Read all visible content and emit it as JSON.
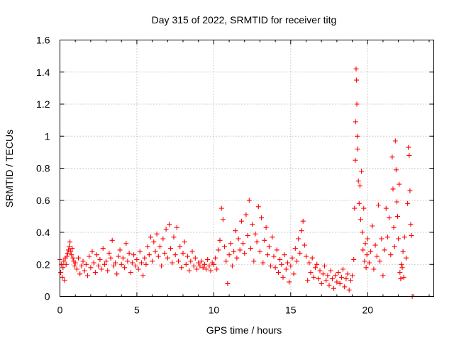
{
  "chart_data": {
    "type": "scatter",
    "title": "Day 315 of 2022, SRMTID for receiver titg",
    "xlabel": "GPS time / hours",
    "ylabel": "SRMTID / TECUs",
    "xlim": [
      0,
      24.3
    ],
    "ylim": [
      0,
      1.6
    ],
    "xticks": [
      0,
      5,
      10,
      15,
      20
    ],
    "yticks": [
      0,
      0.2,
      0.4,
      0.6,
      0.8,
      1,
      1.2,
      1.4,
      1.6
    ],
    "ytick_labels": [
      "0",
      "0.2",
      "0.4",
      "0.6",
      "0.8",
      "1",
      "1.2",
      "1.4",
      "1.6"
    ],
    "grid": true,
    "marker": "plus",
    "marker_color": "#ff0000",
    "series": [
      {
        "name": "SRMTID",
        "points": [
          [
            0.0,
            0.23
          ],
          [
            0.05,
            0.15
          ],
          [
            0.1,
            0.2
          ],
          [
            0.15,
            0.12
          ],
          [
            0.2,
            0.18
          ],
          [
            0.25,
            0.22
          ],
          [
            0.3,
            0.1
          ],
          [
            0.35,
            0.24
          ],
          [
            0.4,
            0.2
          ],
          [
            0.45,
            0.25
          ],
          [
            0.5,
            0.27
          ],
          [
            0.55,
            0.29
          ],
          [
            0.6,
            0.31
          ],
          [
            0.65,
            0.34
          ],
          [
            0.7,
            0.28
          ],
          [
            0.75,
            0.26
          ],
          [
            0.8,
            0.3
          ],
          [
            0.85,
            0.24
          ],
          [
            0.9,
            0.22
          ],
          [
            0.95,
            0.19
          ],
          [
            1.0,
            0.21
          ],
          [
            1.1,
            0.17
          ],
          [
            1.2,
            0.24
          ],
          [
            1.3,
            0.14
          ],
          [
            1.4,
            0.19
          ],
          [
            1.5,
            0.22
          ],
          [
            1.6,
            0.16
          ],
          [
            1.7,
            0.2
          ],
          [
            1.8,
            0.13
          ],
          [
            1.9,
            0.25
          ],
          [
            2.0,
            0.18
          ],
          [
            2.1,
            0.28
          ],
          [
            2.2,
            0.21
          ],
          [
            2.3,
            0.15
          ],
          [
            2.4,
            0.26
          ],
          [
            2.5,
            0.19
          ],
          [
            2.6,
            0.23
          ],
          [
            2.7,
            0.17
          ],
          [
            2.8,
            0.3
          ],
          [
            2.9,
            0.2
          ],
          [
            3.0,
            0.22
          ],
          [
            3.1,
            0.16
          ],
          [
            3.2,
            0.27
          ],
          [
            3.3,
            0.24
          ],
          [
            3.4,
            0.35
          ],
          [
            3.5,
            0.19
          ],
          [
            3.6,
            0.21
          ],
          [
            3.7,
            0.14
          ],
          [
            3.8,
            0.25
          ],
          [
            3.9,
            0.29
          ],
          [
            4.0,
            0.2
          ],
          [
            4.1,
            0.24
          ],
          [
            4.2,
            0.18
          ],
          [
            4.3,
            0.33
          ],
          [
            4.4,
            0.22
          ],
          [
            4.5,
            0.27
          ],
          [
            4.6,
            0.15
          ],
          [
            4.7,
            0.21
          ],
          [
            4.8,
            0.26
          ],
          [
            4.9,
            0.19
          ],
          [
            5.0,
            0.23
          ],
          [
            5.1,
            0.17
          ],
          [
            5.2,
            0.28
          ],
          [
            5.3,
            0.21
          ],
          [
            5.4,
            0.13
          ],
          [
            5.5,
            0.24
          ],
          [
            5.6,
            0.2
          ],
          [
            5.7,
            0.31
          ],
          [
            5.8,
            0.26
          ],
          [
            5.9,
            0.37
          ],
          [
            6.0,
            0.22
          ],
          [
            6.1,
            0.34
          ],
          [
            6.2,
            0.28
          ],
          [
            6.3,
            0.39
          ],
          [
            6.4,
            0.25
          ],
          [
            6.5,
            0.31
          ],
          [
            6.6,
            0.19
          ],
          [
            6.7,
            0.36
          ],
          [
            6.8,
            0.27
          ],
          [
            6.9,
            0.42
          ],
          [
            7.0,
            0.24
          ],
          [
            7.1,
            0.45
          ],
          [
            7.2,
            0.3
          ],
          [
            7.3,
            0.21
          ],
          [
            7.4,
            0.37
          ],
          [
            7.5,
            0.26
          ],
          [
            7.6,
            0.43
          ],
          [
            7.7,
            0.22
          ],
          [
            7.8,
            0.31
          ],
          [
            7.9,
            0.18
          ],
          [
            8.0,
            0.27
          ],
          [
            8.1,
            0.34
          ],
          [
            8.2,
            0.2
          ],
          [
            8.3,
            0.25
          ],
          [
            8.4,
            0.16
          ],
          [
            8.5,
            0.22
          ],
          [
            8.6,
            0.28
          ],
          [
            8.7,
            0.19
          ],
          [
            8.8,
            0.24
          ],
          [
            8.9,
            0.17
          ],
          [
            9.0,
            0.21
          ],
          [
            9.1,
            0.19
          ],
          [
            9.2,
            0.22
          ],
          [
            9.3,
            0.18
          ],
          [
            9.4,
            0.2
          ],
          [
            9.5,
            0.17
          ],
          [
            9.6,
            0.23
          ],
          [
            9.7,
            0.19
          ],
          [
            9.8,
            0.16
          ],
          [
            9.9,
            0.21
          ],
          [
            10.0,
            0.2
          ],
          [
            10.1,
            0.24
          ],
          [
            10.2,
            0.17
          ],
          [
            10.3,
            0.29
          ],
          [
            10.4,
            0.35
          ],
          [
            10.5,
            0.55
          ],
          [
            10.6,
            0.48
          ],
          [
            10.7,
            0.31
          ],
          [
            10.8,
            0.22
          ],
          [
            10.9,
            0.08
          ],
          [
            11.0,
            0.26
          ],
          [
            11.1,
            0.33
          ],
          [
            11.2,
            0.19
          ],
          [
            11.3,
            0.28
          ],
          [
            11.4,
            0.41
          ],
          [
            11.5,
            0.24
          ],
          [
            11.6,
            0.36
          ],
          [
            11.7,
            0.29
          ],
          [
            11.8,
            0.47
          ],
          [
            11.9,
            0.33
          ],
          [
            12.0,
            0.27
          ],
          [
            12.1,
            0.51
          ],
          [
            12.2,
            0.38
          ],
          [
            12.3,
            0.6
          ],
          [
            12.4,
            0.3
          ],
          [
            12.5,
            0.45
          ],
          [
            12.6,
            0.22
          ],
          [
            12.7,
            0.39
          ],
          [
            12.8,
            0.34
          ],
          [
            12.9,
            0.56
          ],
          [
            13.0,
            0.28
          ],
          [
            13.1,
            0.49
          ],
          [
            13.2,
            0.21
          ],
          [
            13.3,
            0.35
          ],
          [
            13.4,
            0.43
          ],
          [
            13.5,
            0.26
          ],
          [
            13.6,
            0.31
          ],
          [
            13.7,
            0.19
          ],
          [
            13.8,
            0.37
          ],
          [
            13.9,
            0.25
          ],
          [
            14.0,
            0.18
          ],
          [
            14.1,
            0.29
          ],
          [
            14.2,
            0.15
          ],
          [
            14.3,
            0.23
          ],
          [
            14.4,
            0.2
          ],
          [
            14.5,
            0.12
          ],
          [
            14.6,
            0.26
          ],
          [
            14.7,
            0.17
          ],
          [
            14.8,
            0.21
          ],
          [
            14.9,
            0.09
          ],
          [
            15.0,
            0.19
          ],
          [
            15.1,
            0.24
          ],
          [
            15.2,
            0.14
          ],
          [
            15.3,
            0.3
          ],
          [
            15.4,
            0.22
          ],
          [
            15.5,
            0.36
          ],
          [
            15.6,
            0.27
          ],
          [
            15.7,
            0.41
          ],
          [
            15.8,
            0.47
          ],
          [
            15.9,
            0.32
          ],
          [
            16.0,
            0.25
          ],
          [
            16.1,
            0.1
          ],
          [
            16.2,
            0.21
          ],
          [
            16.3,
            0.15
          ],
          [
            16.4,
            0.24
          ],
          [
            16.5,
            0.12
          ],
          [
            16.6,
            0.18
          ],
          [
            16.7,
            0.2
          ],
          [
            16.8,
            0.11
          ],
          [
            16.9,
            0.16
          ],
          [
            17.0,
            0.08
          ],
          [
            17.1,
            0.14
          ],
          [
            17.2,
            0.19
          ],
          [
            17.3,
            0.1
          ],
          [
            17.4,
            0.13
          ],
          [
            17.5,
            0.07
          ],
          [
            17.6,
            0.16
          ],
          [
            17.7,
            0.11
          ],
          [
            17.8,
            0.05
          ],
          [
            17.9,
            0.13
          ],
          [
            18.0,
            0.09
          ],
          [
            18.1,
            0.15
          ],
          [
            18.2,
            0.08
          ],
          [
            18.3,
            0.12
          ],
          [
            18.4,
            0.17
          ],
          [
            18.5,
            0.06
          ],
          [
            18.6,
            0.11
          ],
          [
            18.7,
            0.14
          ],
          [
            18.8,
            0.04
          ],
          [
            18.9,
            0.1
          ],
          [
            19.0,
            0.13
          ],
          [
            19.1,
            0.23
          ],
          [
            19.15,
            0.55
          ],
          [
            19.2,
            0.85
          ],
          [
            19.22,
            1.09
          ],
          [
            19.25,
            1.42
          ],
          [
            19.28,
            1.35
          ],
          [
            19.3,
            1.2
          ],
          [
            19.32,
            1.0
          ],
          [
            19.35,
            0.92
          ],
          [
            19.4,
            0.72
          ],
          [
            19.45,
            0.58
          ],
          [
            19.5,
            0.69
          ],
          [
            19.55,
            0.48
          ],
          [
            19.6,
            0.78
          ],
          [
            19.65,
            0.4
          ],
          [
            19.7,
            0.29
          ],
          [
            19.75,
            0.55
          ],
          [
            19.8,
            0.22
          ],
          [
            19.85,
            0.33
          ],
          [
            19.9,
            0.18
          ],
          [
            19.95,
            0.26
          ],
          [
            20.0,
            0.36
          ],
          [
            20.1,
            0.21
          ],
          [
            20.2,
            0.28
          ],
          [
            20.3,
            0.44
          ],
          [
            20.4,
            0.17
          ],
          [
            20.5,
            0.32
          ],
          [
            20.6,
            0.25
          ],
          [
            20.7,
            0.57
          ],
          [
            20.8,
            0.22
          ],
          [
            20.9,
            0.36
          ],
          [
            21.0,
            0.13
          ],
          [
            21.1,
            0.29
          ],
          [
            21.2,
            0.55
          ],
          [
            21.3,
            0.37
          ],
          [
            21.4,
            0.49
          ],
          [
            21.5,
            0.26
          ],
          [
            21.6,
            0.87
          ],
          [
            21.65,
            0.67
          ],
          [
            21.7,
            0.43
          ],
          [
            21.75,
            0.31
          ],
          [
            21.8,
            0.97
          ],
          [
            21.85,
            0.79
          ],
          [
            21.9,
            0.59
          ],
          [
            21.95,
            0.5
          ],
          [
            22.0,
            0.36
          ],
          [
            22.05,
            0.7
          ],
          [
            22.1,
            0.15
          ],
          [
            22.15,
            0.11
          ],
          [
            22.2,
            0.2
          ],
          [
            22.25,
            0.18
          ],
          [
            22.3,
            0.28
          ],
          [
            22.35,
            0.12
          ],
          [
            22.4,
            0.37
          ],
          [
            22.5,
            0.24
          ],
          [
            22.6,
            0.58
          ],
          [
            22.65,
            0.93
          ],
          [
            22.7,
            0.88
          ],
          [
            22.75,
            0.66
          ],
          [
            22.8,
            0.45
          ],
          [
            22.85,
            0.38
          ],
          [
            22.9,
            0.0
          ]
        ]
      }
    ]
  }
}
